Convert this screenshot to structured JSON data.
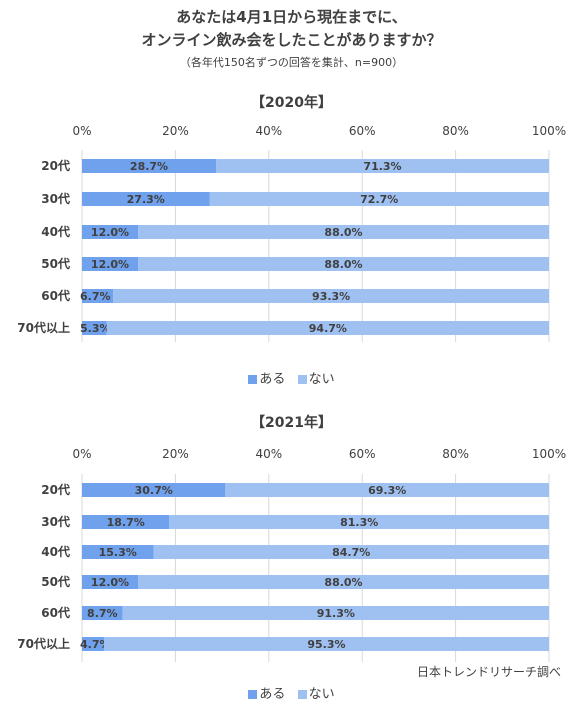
{
  "title_line1": "あなたは4月1日から現在までに、",
  "title_line2": "オンライン飲み会をしたことがありますか？",
  "subtitle": "（各年代150名ずつの回答を集計、n=900）",
  "source": "日本トレンドリサーチ調べ",
  "colors": {
    "aru": "#6fa1ec",
    "nai": "#9fc1f2",
    "grid": "#d9d9d9",
    "text": "#404040"
  },
  "chart_data": [
    {
      "type": "bar",
      "orientation": "horizontal-stacked-100",
      "title": "【2020年】",
      "categories": [
        "20代",
        "30代",
        "40代",
        "50代",
        "60代",
        "70代以上"
      ],
      "series": [
        {
          "name": "ある",
          "values": [
            28.7,
            27.3,
            12.0,
            12.0,
            6.7,
            5.3
          ],
          "labels": [
            "28.7%",
            "27.3%",
            "12.0%",
            "12.0%",
            "6.7%",
            "5.3%"
          ]
        },
        {
          "name": "ない",
          "values": [
            71.3,
            72.7,
            88.0,
            88.0,
            93.3,
            94.7
          ],
          "labels": [
            "71.3%",
            "72.7%",
            "88.0%",
            "88.0%",
            "93.3%",
            "94.7%"
          ]
        }
      ],
      "xticks": [
        "0%",
        "20%",
        "40%",
        "60%",
        "80%",
        "100%"
      ],
      "xlim": [
        0,
        100
      ],
      "grid": true,
      "legend": "bottom"
    },
    {
      "type": "bar",
      "orientation": "horizontal-stacked-100",
      "title": "【2021年】",
      "categories": [
        "20代",
        "30代",
        "40代",
        "50代",
        "60代",
        "70代以上"
      ],
      "series": [
        {
          "name": "ある",
          "values": [
            30.7,
            18.7,
            15.3,
            12.0,
            8.7,
            4.7
          ],
          "labels": [
            "30.7%",
            "18.7%",
            "15.3%",
            "12.0%",
            "8.7%",
            "4.7%"
          ]
        },
        {
          "name": "ない",
          "values": [
            69.3,
            81.3,
            84.7,
            88.0,
            91.3,
            95.3
          ],
          "labels": [
            "69.3%",
            "81.3%",
            "84.7%",
            "88.0%",
            "91.3%",
            "95.3%"
          ]
        }
      ],
      "xticks": [
        "0%",
        "20%",
        "40%",
        "60%",
        "80%",
        "100%"
      ],
      "xlim": [
        0,
        100
      ],
      "grid": true,
      "legend": "bottom"
    }
  ]
}
